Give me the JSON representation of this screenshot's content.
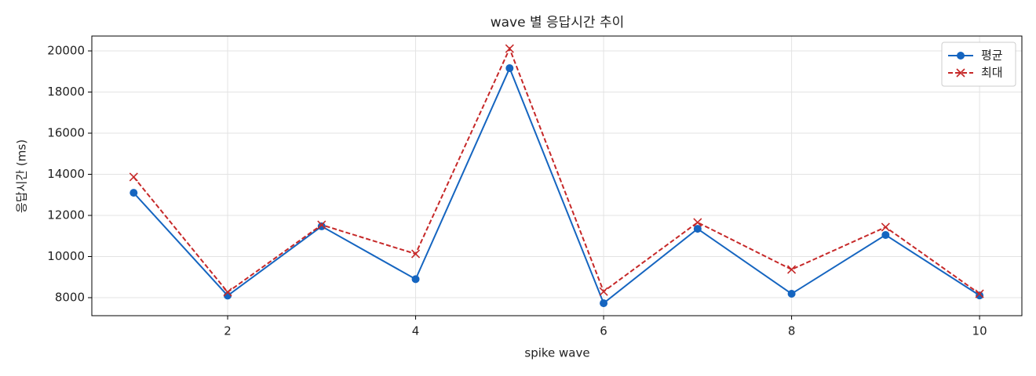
{
  "chart_data": {
    "type": "line",
    "title": "wave 별 응답시간 추이",
    "x_label": "spike wave",
    "y_label": "응답시간 (ms)",
    "x": [
      1,
      2,
      3,
      4,
      5,
      6,
      7,
      8,
      9,
      10
    ],
    "series": [
      {
        "name": "평균",
        "color": "#1565c0",
        "marker": "circle",
        "dash": false,
        "values": [
          13100,
          8100,
          11470,
          8900,
          19160,
          7730,
          11350,
          8190,
          11050,
          8110
        ]
      },
      {
        "name": "최대",
        "color": "#c62828",
        "marker": "x",
        "dash": true,
        "values": [
          13870,
          8270,
          11540,
          10130,
          20110,
          8300,
          11660,
          9370,
          11430,
          8190
        ]
      }
    ],
    "xlim": [
      0.555,
      10.45
    ],
    "xticks": [
      2,
      4,
      6,
      8,
      10
    ],
    "ylim": [
      7124,
      20724
    ],
    "yticks": [
      8000,
      10000,
      12000,
      14000,
      16000,
      18000,
      20000
    ],
    "grid": true,
    "legend": "upper right"
  }
}
